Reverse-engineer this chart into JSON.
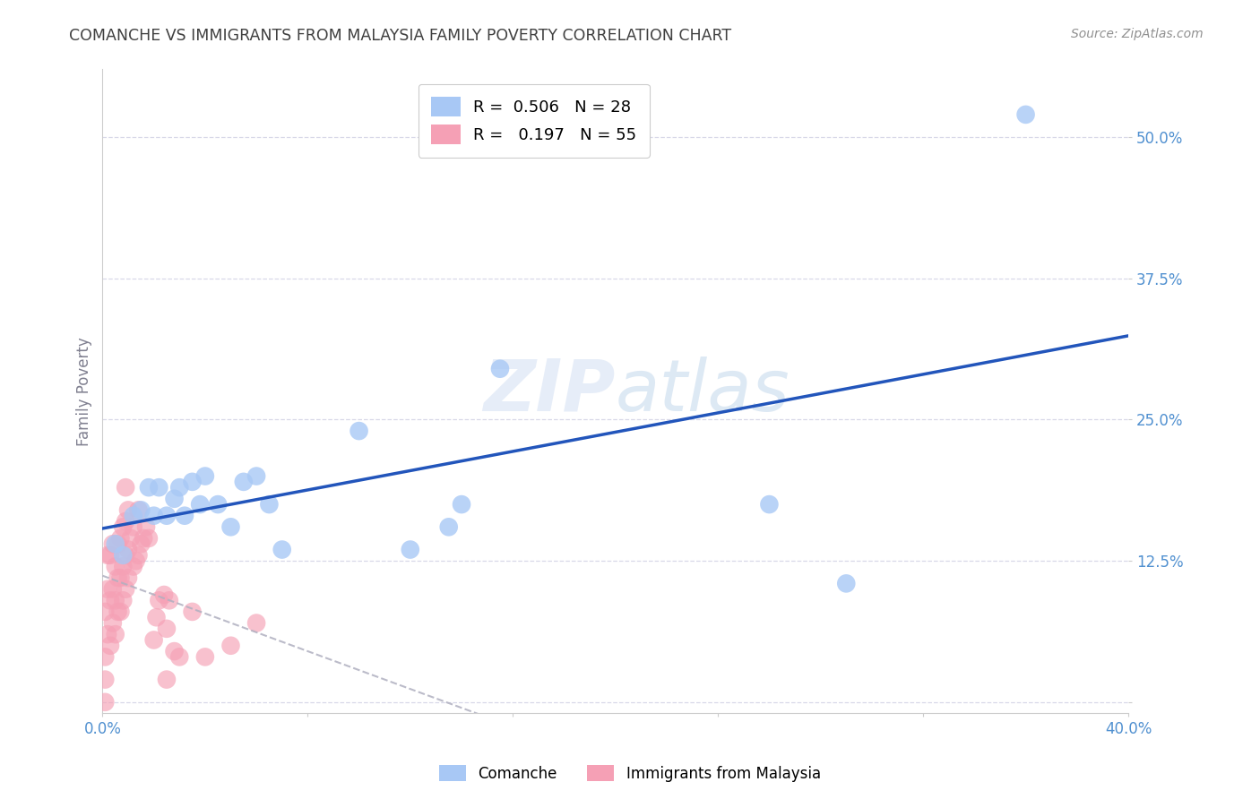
{
  "title": "COMANCHE VS IMMIGRANTS FROM MALAYSIA FAMILY POVERTY CORRELATION CHART",
  "source": "Source: ZipAtlas.com",
  "ylabel": "Family Poverty",
  "xlim": [
    0.0,
    0.4
  ],
  "ylim": [
    -0.01,
    0.56
  ],
  "yticks": [
    0.0,
    0.125,
    0.25,
    0.375,
    0.5
  ],
  "ytick_labels": [
    "",
    "12.5%",
    "25.0%",
    "37.5%",
    "50.0%"
  ],
  "xticks": [
    0.0,
    0.08,
    0.16,
    0.24,
    0.32,
    0.4
  ],
  "xtick_labels": [
    "0.0%",
    "",
    "",
    "",
    "",
    "40.0%"
  ],
  "legend_r_comanche": "R =  0.506",
  "legend_n_comanche": "N = 28",
  "legend_r_malaysia": "R =   0.197",
  "legend_n_malaysia": "N = 55",
  "comanche_color": "#a8c8f5",
  "malaysia_color": "#f5a0b5",
  "comanche_line_color": "#2255bb",
  "malaysia_line_color": "#cc6080",
  "comanche_x": [
    0.005,
    0.008,
    0.012,
    0.015,
    0.018,
    0.02,
    0.022,
    0.025,
    0.028,
    0.03,
    0.032,
    0.035,
    0.038,
    0.04,
    0.045,
    0.05,
    0.055,
    0.06,
    0.065,
    0.07,
    0.1,
    0.12,
    0.135,
    0.14,
    0.155,
    0.26,
    0.29,
    0.36
  ],
  "comanche_y": [
    0.14,
    0.13,
    0.165,
    0.17,
    0.19,
    0.165,
    0.19,
    0.165,
    0.18,
    0.19,
    0.165,
    0.195,
    0.175,
    0.2,
    0.175,
    0.155,
    0.195,
    0.2,
    0.175,
    0.135,
    0.24,
    0.135,
    0.155,
    0.175,
    0.295,
    0.175,
    0.105,
    0.52
  ],
  "malaysia_x": [
    0.001,
    0.001,
    0.001,
    0.001,
    0.002,
    0.002,
    0.002,
    0.003,
    0.003,
    0.003,
    0.004,
    0.004,
    0.004,
    0.005,
    0.005,
    0.005,
    0.006,
    0.006,
    0.006,
    0.007,
    0.007,
    0.007,
    0.008,
    0.008,
    0.008,
    0.009,
    0.009,
    0.009,
    0.009,
    0.01,
    0.01,
    0.01,
    0.011,
    0.012,
    0.012,
    0.013,
    0.014,
    0.014,
    0.015,
    0.016,
    0.017,
    0.018,
    0.02,
    0.021,
    0.022,
    0.024,
    0.025,
    0.025,
    0.026,
    0.028,
    0.03,
    0.035,
    0.04,
    0.05,
    0.06
  ],
  "malaysia_y": [
    0.0,
    0.02,
    0.04,
    0.08,
    0.06,
    0.1,
    0.13,
    0.05,
    0.09,
    0.13,
    0.07,
    0.1,
    0.14,
    0.06,
    0.09,
    0.12,
    0.08,
    0.11,
    0.14,
    0.08,
    0.11,
    0.145,
    0.09,
    0.12,
    0.155,
    0.1,
    0.13,
    0.16,
    0.19,
    0.11,
    0.135,
    0.17,
    0.145,
    0.12,
    0.155,
    0.125,
    0.13,
    0.17,
    0.14,
    0.145,
    0.155,
    0.145,
    0.055,
    0.075,
    0.09,
    0.095,
    0.02,
    0.065,
    0.09,
    0.045,
    0.04,
    0.08,
    0.04,
    0.05,
    0.07
  ],
  "background_color": "#ffffff",
  "grid_color": "#d8d8e8",
  "title_color": "#404040",
  "tick_label_color": "#5090d0"
}
